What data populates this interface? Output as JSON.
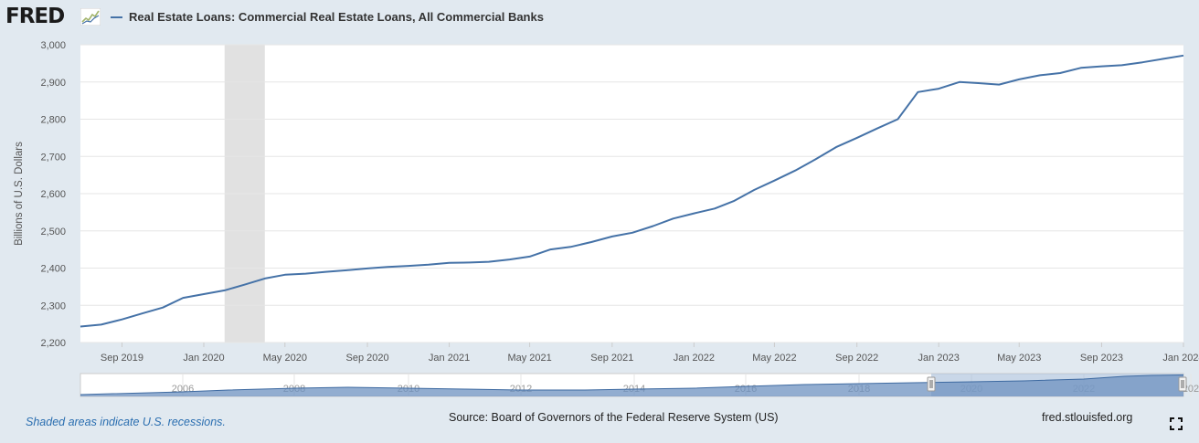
{
  "header": {
    "logo_text": "FRED",
    "logo_icon": "fred-graph-icon",
    "title": "Real Estate Loans: Commercial Real Estate Loans, All Commercial Banks"
  },
  "footer": {
    "recession_note": "Shaded areas indicate U.S. recessions.",
    "source": "Source: Board of Governors of the Federal Reserve System (US)",
    "site": "fred.stlouisfed.org",
    "fullscreen_icon": "fullscreen-icon"
  },
  "colors": {
    "background": "#e1e9f0",
    "plot_bg": "#ffffff",
    "series": "#4572a7",
    "recession_shade": "#e1e1e1",
    "navigator_fill": "#6d92c0",
    "navigator_selected": "#a5bcd8"
  },
  "chart_data": {
    "type": "line",
    "title": "Real Estate Loans: Commercial Real Estate Loans, All Commercial Banks",
    "ylabel": "Billions of U.S. Dollars",
    "xlabel": "",
    "ylim": [
      2200,
      3000
    ],
    "xlim": [
      "2019-07-01",
      "2024-01-01"
    ],
    "y_ticks": [
      "2,200",
      "2,300",
      "2,400",
      "2,500",
      "2,600",
      "2,700",
      "2,800",
      "2,900",
      "3,000"
    ],
    "x_ticks": [
      "Sep 2019",
      "Jan 2020",
      "May 2020",
      "Sep 2020",
      "Jan 2021",
      "May 2021",
      "Sep 2021",
      "Jan 2022",
      "May 2022",
      "Sep 2022",
      "Jan 2023",
      "May 2023",
      "Sep 2023",
      "Jan 2024"
    ],
    "grid": true,
    "legend": "top-left",
    "recessions": [
      [
        "2020-02-01",
        "2020-04-01"
      ]
    ],
    "series": [
      {
        "name": "Real Estate Loans: Commercial Real Estate Loans, All Commercial Banks",
        "x": [
          "2019-07-01",
          "2019-08-01",
          "2019-09-01",
          "2019-10-01",
          "2019-11-01",
          "2019-12-01",
          "2020-01-01",
          "2020-02-01",
          "2020-03-01",
          "2020-04-01",
          "2020-05-01",
          "2020-06-01",
          "2020-07-01",
          "2020-08-01",
          "2020-09-01",
          "2020-10-01",
          "2020-11-01",
          "2020-12-01",
          "2021-01-01",
          "2021-02-01",
          "2021-03-01",
          "2021-04-01",
          "2021-05-01",
          "2021-06-01",
          "2021-07-01",
          "2021-08-01",
          "2021-09-01",
          "2021-10-01",
          "2021-11-01",
          "2021-12-01",
          "2022-01-01",
          "2022-02-01",
          "2022-03-01",
          "2022-04-01",
          "2022-05-01",
          "2022-06-01",
          "2022-07-01",
          "2022-08-01",
          "2022-09-01",
          "2022-10-01",
          "2022-11-01",
          "2022-12-01",
          "2023-01-01",
          "2023-02-01",
          "2023-03-01",
          "2023-04-01",
          "2023-05-01",
          "2023-06-01",
          "2023-07-01",
          "2023-08-01",
          "2023-09-01",
          "2023-10-01",
          "2023-11-01",
          "2023-12-01",
          "2024-01-01"
        ],
        "values": [
          2243,
          2248,
          2262,
          2278,
          2294,
          2320,
          2330,
          2340,
          2355,
          2372,
          2382,
          2385,
          2390,
          2394,
          2399,
          2403,
          2406,
          2409,
          2414,
          2415,
          2417,
          2423,
          2431,
          2450,
          2457,
          2470,
          2485,
          2495,
          2513,
          2533,
          2547,
          2560,
          2580,
          2610,
          2635,
          2662,
          2692,
          2725,
          2750,
          2775,
          2800,
          2873,
          2882,
          2900,
          2897,
          2893,
          2907,
          2918,
          2924,
          2938,
          2942,
          2945,
          2953,
          2962,
          2971
        ]
      }
    ],
    "navigator": {
      "tick_labels": [
        "2006",
        "2008",
        "2010",
        "2012",
        "2014",
        "2016",
        "2018",
        "2020",
        "2022",
        "202"
      ]
    }
  }
}
